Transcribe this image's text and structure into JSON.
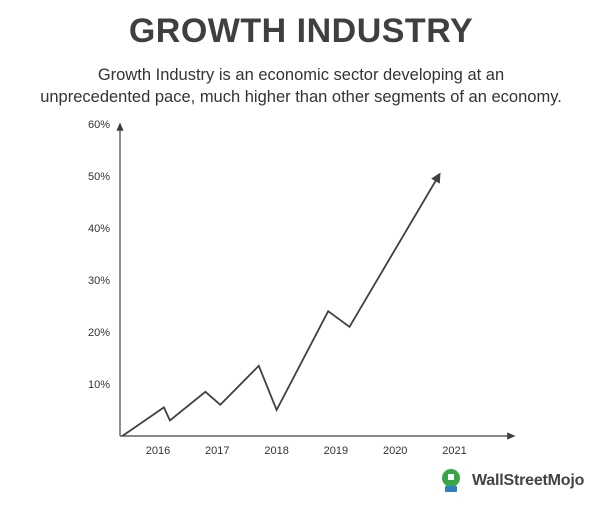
{
  "title": "GROWTH INDUSTRY",
  "subtitle_lines": [
    "Growth Industry is an economic sector developing at an",
    "unprecedented pace, much higher than other segments of an economy."
  ],
  "brand": {
    "name": "WallStreetMojo",
    "accent": "#3aa547"
  },
  "chart_data": {
    "type": "line",
    "title": "",
    "xlabel": "",
    "ylabel": "",
    "x_ticks": [
      "2016",
      "2017",
      "2018",
      "2019",
      "2020",
      "2021"
    ],
    "y_ticks": [
      "10%",
      "20%",
      "30%",
      "40%",
      "50%",
      "60%"
    ],
    "ylim": [
      0,
      60
    ],
    "grid": false,
    "line_color": "#404040",
    "series": [
      {
        "points": [
          {
            "x": 2015.4,
            "y": 0
          },
          {
            "x": 2016.1,
            "y": 5.5
          },
          {
            "x": 2016.2,
            "y": 3
          },
          {
            "x": 2016.8,
            "y": 8.5
          },
          {
            "x": 2017.05,
            "y": 6
          },
          {
            "x": 2017.7,
            "y": 13.5
          },
          {
            "x": 2018.0,
            "y": 5
          },
          {
            "x": 2018.87,
            "y": 24
          },
          {
            "x": 2019.23,
            "y": 21
          },
          {
            "x": 2020.73,
            "y": 50
          }
        ],
        "end_arrow": true
      }
    ]
  }
}
